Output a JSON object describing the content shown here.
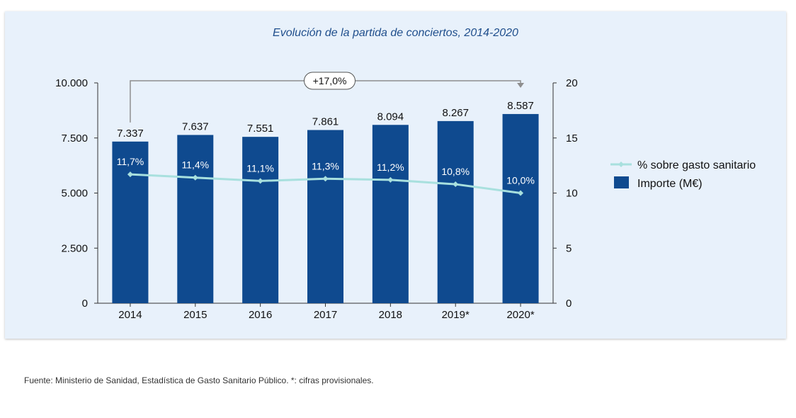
{
  "chart_data": {
    "type": "bar",
    "title": "Evolución de la partida de conciertos, 2014-2020",
    "categories": [
      "2014",
      "2015",
      "2016",
      "2017",
      "2018",
      "2019*",
      "2020*"
    ],
    "series": [
      {
        "name": "Importe (M€)",
        "type": "bar",
        "axis": "left",
        "values": [
          7337,
          7637,
          7551,
          7861,
          8094,
          8267,
          8587
        ],
        "labels": [
          "7.337",
          "7.637",
          "7.551",
          "7.861",
          "8.094",
          "8.267",
          "8.587"
        ],
        "color": "#0f4a8f"
      },
      {
        "name": "% sobre gasto sanitario",
        "type": "line",
        "axis": "right",
        "values": [
          11.7,
          11.4,
          11.1,
          11.3,
          11.2,
          10.8,
          10.0
        ],
        "labels": [
          "11,7%",
          "11,4%",
          "11,1%",
          "11,3%",
          "11,2%",
          "10,8%",
          "10,0%"
        ],
        "color": "#a8e0de"
      }
    ],
    "left_axis": {
      "ylim": [
        0,
        10000
      ],
      "ticks": [
        0,
        2500,
        5000,
        7500,
        10000
      ],
      "tick_labels": [
        "0",
        "2.500",
        "5.000",
        "7.500",
        "10.000"
      ]
    },
    "right_axis": {
      "ylim": [
        0,
        20
      ],
      "ticks": [
        0,
        5,
        10,
        15,
        20
      ],
      "tick_labels": [
        "0",
        "5",
        "10",
        "15",
        "20"
      ]
    },
    "annotation": {
      "text": "+17,0%",
      "from": "2014",
      "to": "2020*"
    },
    "legend_position": "right",
    "grid": false
  },
  "footer": {
    "source": "Fuente: Ministerio de Sanidad, Estadística de Gasto Sanitario Público. *: cifras provisionales."
  }
}
